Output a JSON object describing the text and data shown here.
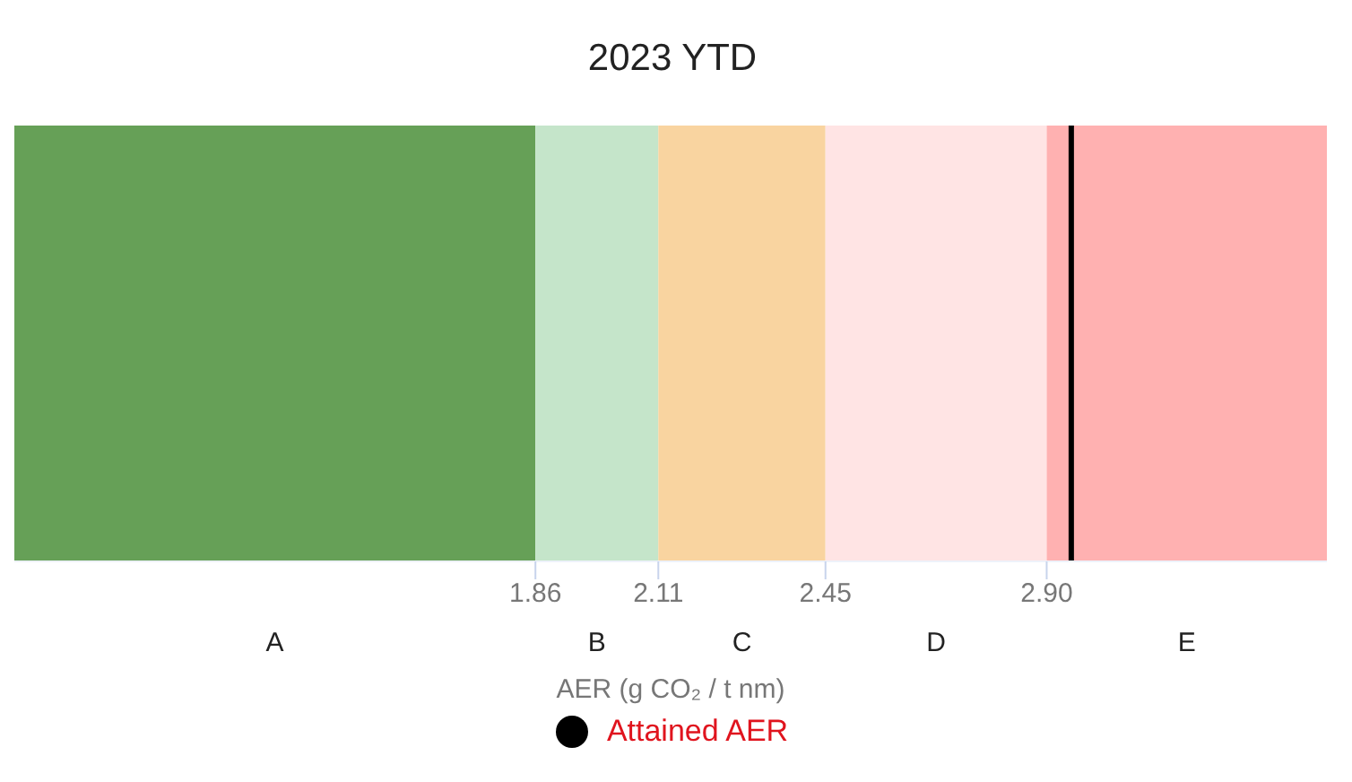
{
  "chart_data": {
    "type": "bar",
    "orientation": "horizontal",
    "title": "2023 YTD",
    "xlabel": "AER (g CO₂ / t nm)",
    "categories": [
      null
    ],
    "series": [
      {
        "name": "A",
        "color": "#66a057",
        "base": [
          0.8
        ],
        "values": [
          1.06
        ]
      },
      {
        "name": "B",
        "color": "#c5e5ca",
        "base": [
          1.86
        ],
        "values": [
          0.25
        ]
      },
      {
        "name": "C",
        "color": "#f9d4a0",
        "base": [
          2.11
        ],
        "values": [
          0.34
        ]
      },
      {
        "name": "D",
        "color": "#ffe4e4",
        "base": [
          2.45
        ],
        "values": [
          0.45
        ]
      },
      {
        "name": "E",
        "color": "#ffb1b1",
        "base": [
          2.9
        ],
        "values": [
          0.57
        ]
      }
    ],
    "xlim": [
      0.8,
      3.47
    ],
    "xticks": [
      1.86,
      2.11,
      2.45,
      {
        "value": 2.9,
        "label": "2.90"
      }
    ],
    "ref_lines": [
      {
        "axis": "x",
        "value": 2.95,
        "label": "Attained AER",
        "color": "#000000"
      }
    ],
    "legend": "bottom",
    "grid": false
  }
}
